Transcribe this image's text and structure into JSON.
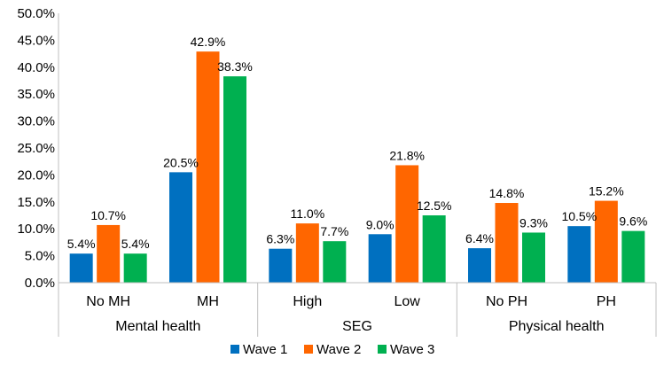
{
  "chart_data": {
    "type": "bar",
    "title": "",
    "xlabel": "",
    "ylabel": "",
    "ylim": [
      0,
      50
    ],
    "y_ticks": [
      "0.0%",
      "5.0%",
      "10.0%",
      "15.0%",
      "20.0%",
      "25.0%",
      "30.0%",
      "35.0%",
      "40.0%",
      "45.0%",
      "50.0%"
    ],
    "grid": false,
    "legend_position": "bottom",
    "groups": [
      {
        "label": "Mental health",
        "categories": [
          "No MH",
          "MH"
        ]
      },
      {
        "label": "SEG",
        "categories": [
          "High",
          "Low"
        ]
      },
      {
        "label": "Physical health",
        "categories": [
          "No PH",
          "PH"
        ]
      }
    ],
    "categories": [
      "No MH",
      "MH",
      "High",
      "Low",
      "No PH",
      "PH"
    ],
    "series": [
      {
        "name": "Wave 1",
        "color": "#0070C0",
        "values": [
          5.4,
          20.5,
          6.3,
          9.0,
          6.4,
          10.5
        ],
        "labels": [
          "5.4%",
          "20.5%",
          "6.3%",
          "9.0%",
          "6.4%",
          "10.5%"
        ]
      },
      {
        "name": "Wave 2",
        "color": "#FF6600",
        "values": [
          10.7,
          42.9,
          11.0,
          21.8,
          14.8,
          15.2
        ],
        "labels": [
          "10.7%",
          "42.9%",
          "11.0%",
          "21.8%",
          "14.8%",
          "15.2%"
        ]
      },
      {
        "name": "Wave 3",
        "color": "#00B050",
        "values": [
          5.4,
          38.3,
          7.7,
          12.5,
          9.3,
          9.6
        ],
        "labels": [
          "5.4%",
          "38.3%",
          "7.7%",
          "12.5%",
          "9.3%",
          "9.6%"
        ]
      }
    ]
  }
}
